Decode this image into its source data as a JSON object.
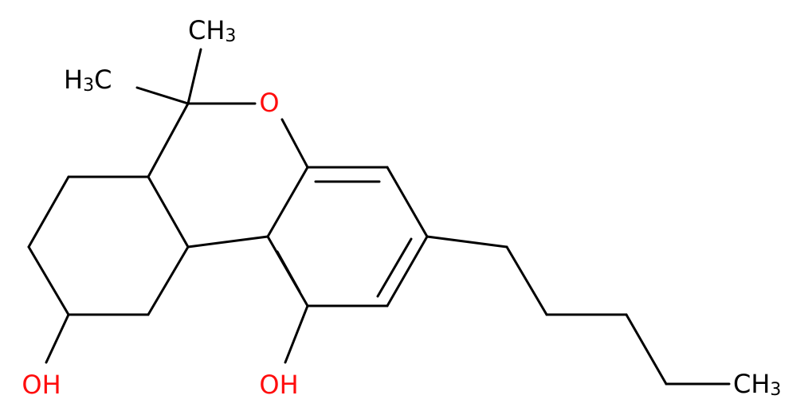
{
  "labels": [
    [
      "CH",
      "3"
    ],
    [
      "H",
      "3",
      "C"
    ],
    [
      "O"
    ],
    [
      "OH"
    ],
    [
      "OH"
    ],
    [
      "CH",
      "3"
    ]
  ]
}
